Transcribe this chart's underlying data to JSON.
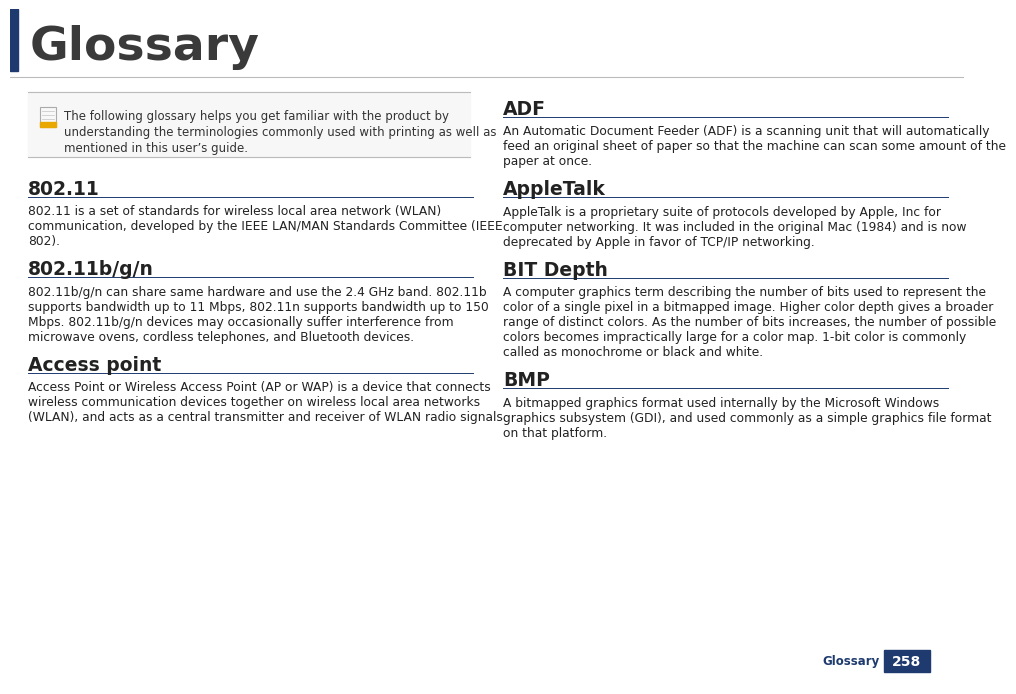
{
  "title": "Glossary",
  "title_color": "#3a3a3a",
  "title_bg_color": "#1e3a6e",
  "bg_color": "#ffffff",
  "page_number": "258",
  "page_label": "Glossary",
  "page_badge_color": "#1e3a6e",
  "section_line_color": "#1e3a6e",
  "header_line_color": "#bbbbbb",
  "note_box_border": "#bbbbbb",
  "note_box_bg": "#f7f7f7",
  "note_icon_color": "#e8a800",
  "body_text_color": "#222222",
  "heading_color": "#222222",
  "note_text_line1": "The following glossary helps you get familiar with the product by",
  "note_text_line2": "understanding the terminologies commonly used with printing as well as",
  "note_text_line3": "mentioned in this user’s guide.",
  "left_sections": [
    {
      "heading": "802.11",
      "lines": [
        "802.11 is a set of standards for wireless local area network (WLAN)",
        "communication, developed by the IEEE LAN/MAN Standards Committee (IEEE",
        "802)."
      ]
    },
    {
      "heading": "802.11b/g/n",
      "lines": [
        "802.11b/g/n can share same hardware and use the 2.4 GHz band. 802.11b",
        "supports bandwidth up to 11 Mbps, 802.11n supports bandwidth up to 150",
        "Mbps. 802.11b/g/n devices may occasionally suffer interference from",
        "microwave ovens, cordless telephones, and Bluetooth devices."
      ]
    },
    {
      "heading": "Access point",
      "lines": [
        "Access Point or Wireless Access Point (AP or WAP) is a device that connects",
        "wireless communication devices together on wireless local area networks",
        "(WLAN), and acts as a central transmitter and receiver of WLAN radio signals."
      ]
    }
  ],
  "right_sections": [
    {
      "heading": "ADF",
      "lines": [
        "An Automatic Document Feeder (ADF) is a scanning unit that will automatically",
        "feed an original sheet of paper so that the machine can scan some amount of the",
        "paper at once."
      ]
    },
    {
      "heading": "AppleTalk",
      "lines": [
        "AppleTalk is a proprietary suite of protocols developed by Apple, Inc for",
        "computer networking. It was included in the original Mac (1984) and is now",
        "deprecated by Apple in favor of TCP/IP networking."
      ]
    },
    {
      "heading": "BIT Depth",
      "lines": [
        "A computer graphics term describing the number of bits used to represent the",
        "color of a single pixel in a bitmapped image. Higher color depth gives a broader",
        "range of distinct colors. As the number of bits increases, the number of possible",
        "colors becomes impractically large for a color map. 1-bit color is commonly",
        "called as monochrome or black and white."
      ]
    },
    {
      "heading": "BMP",
      "lines": [
        "A bitmapped graphics format used internally by the Microsoft Windows",
        "graphics subsystem (GDI), and used commonly as a simple graphics file format",
        "on that platform."
      ]
    }
  ]
}
